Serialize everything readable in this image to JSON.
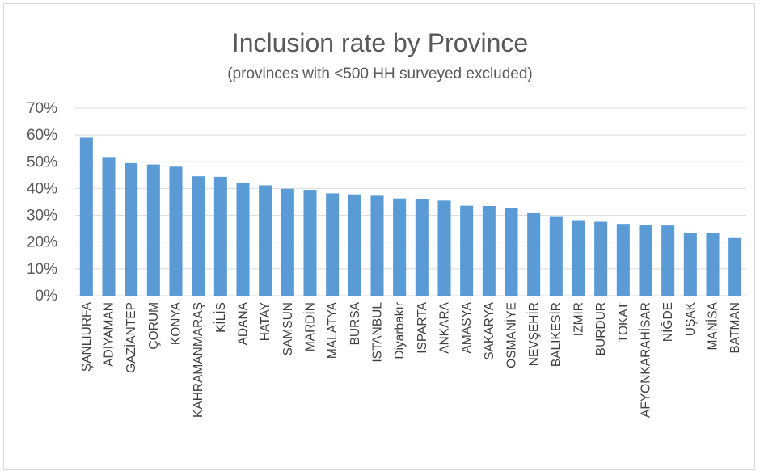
{
  "chart_data": {
    "type": "bar",
    "title": "Inclusion rate by Province",
    "subtitle": "(provinces with <500 HH surveyed excluded)",
    "xlabel": "",
    "ylabel": "",
    "ylim": [
      0,
      70
    ],
    "y_ticks": [
      "0%",
      "10%",
      "20%",
      "30%",
      "40%",
      "50%",
      "60%",
      "70%"
    ],
    "grid": true,
    "legend": "none",
    "bar_color": "#5b9bd5",
    "grid_color": "#d9d9d9",
    "categories": [
      "ŞANLIURFA",
      "ADIYAMAN",
      "GAZİANTEP",
      "ÇORUM",
      "KONYA",
      "KAHRAMANMARAŞ",
      "KİLİS",
      "ADANA",
      "HATAY",
      "SAMSUN",
      "MARDİN",
      "MALATYA",
      "BURSA",
      "ISTANBUL",
      "Diyarbakır",
      "ISPARTA",
      "ANKARA",
      "AMASYA",
      "SAKARYA",
      "OSMANİYE",
      "NEVŞEHİR",
      "BALIKESİR",
      "İZMİR",
      "BURDUR",
      "TOKAT",
      "AFYONKARAHİSAR",
      "NİĞDE",
      "UŞAK",
      "MANİSA",
      "BATMAN"
    ],
    "values": [
      59,
      51.8,
      49.5,
      49,
      48.2,
      44.6,
      44.4,
      42.2,
      41.2,
      39.9,
      39.5,
      38.2,
      37.8,
      37.3,
      36.3,
      36.2,
      35.5,
      33.6,
      33.5,
      32.7,
      30.8,
      29.4,
      28.2,
      27.6,
      26.8,
      26.4,
      26.2,
      23.4,
      23.3,
      21.8
    ]
  }
}
